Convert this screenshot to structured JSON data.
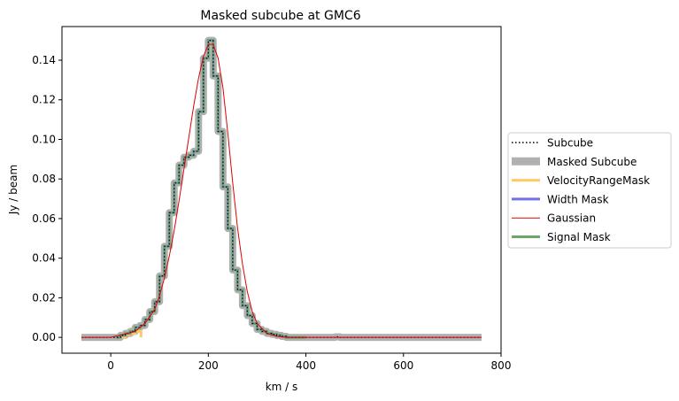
{
  "chart_data": {
    "type": "line",
    "title": "Masked subcube at GMC6",
    "xlabel": "km / s",
    "ylabel": "Jy / beam",
    "xlim": [
      -100,
      800
    ],
    "ylim": [
      -0.008,
      0.157
    ],
    "xticks": [
      0,
      200,
      400,
      600,
      800
    ],
    "yticks": [
      0.0,
      0.02,
      0.04,
      0.06,
      0.08,
      0.1,
      0.12,
      0.14
    ],
    "xtick_labels": [
      "0",
      "200",
      "400",
      "600",
      "800"
    ],
    "ytick_labels": [
      "0.00",
      "0.02",
      "0.04",
      "0.06",
      "0.08",
      "0.10",
      "0.12",
      "0.14"
    ],
    "grid": false,
    "legend_position": "right-outside",
    "step_x": [
      -60,
      -50,
      -40,
      -30,
      -20,
      -10,
      0,
      10,
      20,
      30,
      40,
      50,
      60,
      70,
      80,
      90,
      100,
      110,
      120,
      130,
      140,
      150,
      160,
      170,
      180,
      190,
      200,
      210,
      220,
      230,
      240,
      250,
      260,
      270,
      280,
      290,
      300,
      310,
      320,
      330,
      340,
      350,
      360,
      370,
      380,
      390,
      400,
      410,
      420,
      430,
      440,
      450,
      460,
      470,
      480,
      490,
      500,
      510,
      520,
      530,
      540,
      550,
      560,
      570,
      580,
      590,
      600,
      610,
      620,
      630,
      640,
      650,
      660,
      670,
      680,
      690,
      700,
      710,
      720,
      730,
      740,
      750,
      760
    ],
    "series": [
      {
        "name": "Masked Subcube",
        "color": "#b0b0b0",
        "style": "step-wide",
        "y": [
          0,
          0,
          0,
          0,
          0,
          0,
          0,
          0,
          0.001,
          0.002,
          0.003,
          0.005,
          0.006,
          0.009,
          0.013,
          0.018,
          0.031,
          0.046,
          0.063,
          0.078,
          0.087,
          0.091,
          0.092,
          0.094,
          0.114,
          0.141,
          0.15,
          0.132,
          0.104,
          0.076,
          0.055,
          0.034,
          0.024,
          0.016,
          0.011,
          0.007,
          0.004,
          0.003,
          0.002,
          0.0015,
          0.001,
          0.0005,
          0,
          0,
          0,
          0,
          0,
          0,
          0,
          0,
          0,
          0,
          0.0003,
          0,
          0,
          0,
          0,
          0,
          0,
          0,
          0,
          0,
          0,
          0,
          0,
          0,
          0,
          0,
          0,
          0,
          0,
          0,
          0,
          0,
          0,
          0,
          0,
          0,
          0,
          0,
          0,
          0,
          0
        ]
      },
      {
        "name": "VelocityRangeMask",
        "color": "#ffc966",
        "style": "step",
        "segment": [
          [
            20,
            0
          ],
          [
            30,
            0.0015
          ],
          [
            40,
            0.002
          ],
          [
            50,
            0.003
          ],
          [
            60,
            0.003
          ],
          [
            62,
            0
          ]
        ]
      },
      {
        "name": "Signal Mask",
        "color": "#6aa86a",
        "style": "step"
      },
      {
        "name": "Width Mask",
        "color": "#7070e8",
        "style": "step"
      },
      {
        "name": "Subcube",
        "color": "#000000",
        "style": "dotted-step"
      },
      {
        "name": "Gaussian",
        "color": "#e00000",
        "style": "line",
        "x": [
          -60,
          0,
          50,
          70,
          90,
          100,
          110,
          120,
          130,
          140,
          150,
          160,
          170,
          180,
          190,
          200,
          210,
          220,
          230,
          240,
          250,
          260,
          270,
          280,
          290,
          300,
          320,
          340,
          360,
          400,
          500,
          760
        ],
        "y": [
          0,
          0,
          0.003,
          0.007,
          0.014,
          0.021,
          0.03,
          0.041,
          0.054,
          0.069,
          0.085,
          0.101,
          0.117,
          0.131,
          0.142,
          0.148,
          0.148,
          0.141,
          0.126,
          0.103,
          0.078,
          0.055,
          0.037,
          0.023,
          0.013,
          0.007,
          0.002,
          0.0005,
          0,
          0,
          0,
          0
        ]
      }
    ],
    "legend_entries": [
      {
        "label": "Subcube",
        "color": "#000000",
        "style": "dotted"
      },
      {
        "label": "Masked Subcube",
        "color": "#b0b0b0",
        "style": "wide"
      },
      {
        "label": "VelocityRangeMask",
        "color": "#ffc966",
        "style": "solid"
      },
      {
        "label": "Width Mask",
        "color": "#7070e8",
        "style": "solid"
      },
      {
        "label": "Gaussian",
        "color": "#e00000",
        "style": "thin"
      },
      {
        "label": "Signal Mask",
        "color": "#6aa86a",
        "style": "solid"
      }
    ]
  }
}
